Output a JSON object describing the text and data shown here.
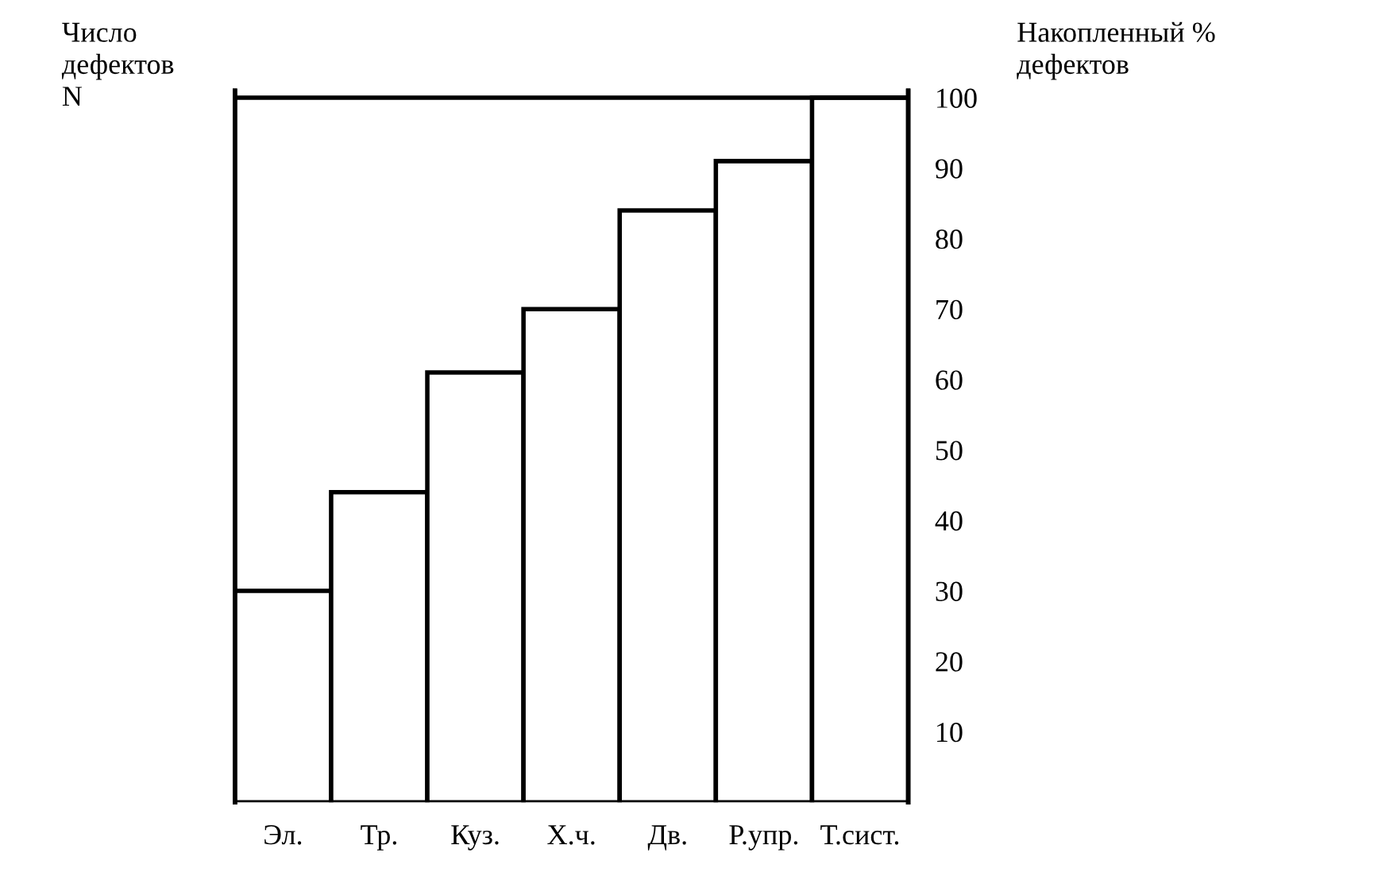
{
  "chart_data": {
    "type": "bar",
    "ylabel": "Число\nдефектов\nN",
    "y2label": "Накопленный %\nдефектов",
    "categories": [
      "Эл.",
      "Тр.",
      "Куз.",
      "Х.ч.",
      "Дв.",
      "Р.упр.",
      "Т.сист."
    ],
    "series": [
      {
        "values": [
          30,
          44,
          61,
          70,
          84,
          91,
          100
        ],
        "color": "#ffffff",
        "axis": "y2"
      }
    ],
    "y2lim": [
      0,
      101
    ],
    "y2ticks": [
      10,
      20,
      30,
      40,
      50,
      60,
      70,
      80,
      90,
      100
    ],
    "ref_lines": [
      {
        "axis": "y2",
        "value": 100,
        "color": "#000000"
      }
    ],
    "grid": false
  }
}
